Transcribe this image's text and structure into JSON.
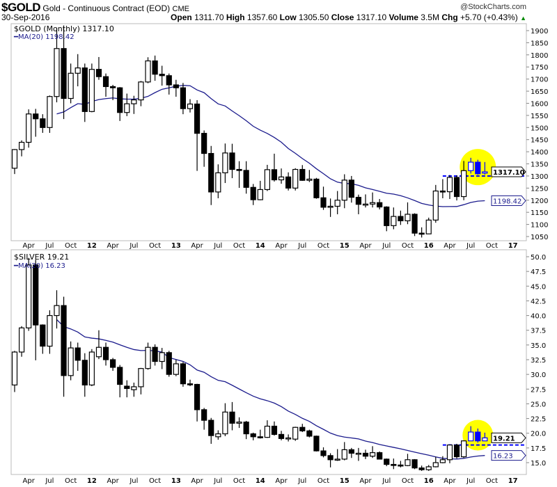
{
  "header": {
    "symbol": "$GOLD",
    "name": "Gold - Continuous Contract (EOD)",
    "exchange": "CME",
    "date": "30-Sep-2016",
    "brand": "@StockCharts.com",
    "open_label": "Open",
    "open": "1311.70",
    "high_label": "High",
    "high": "1357.60",
    "low_label": "Low",
    "low": "1305.50",
    "close_label": "Close",
    "close": "1317.10",
    "volume_label": "Volume",
    "volume": "3.5M",
    "chg_label": "Chg",
    "chg": "+5.70 (+0.43%)",
    "chg_arrow": "▲"
  },
  "colors": {
    "up": "#ffffff",
    "down": "#000000",
    "ma": "#1a1a8c",
    "highlight": "#ffff00",
    "recent": "#0000ff"
  },
  "chart_data": [
    {
      "type": "candlestick",
      "legend": "$GOLD (Monthly) 1317.10",
      "ma_legend": "MA(20) 1198.42",
      "last_tag": "1317.10",
      "ma_tag": "1198.42",
      "ylim": [
        1020,
        1930
      ],
      "yticks": [
        1050,
        1100,
        1150,
        1200,
        1250,
        1300,
        1350,
        1400,
        1450,
        1500,
        1550,
        1600,
        1650,
        1700,
        1750,
        1800,
        1850,
        1900
      ],
      "support_level": 1300,
      "highlight_months": [
        "2016-07",
        "2016-08",
        "2016-09"
      ],
      "start": "2011-02",
      "ohlc": [
        [
          1332,
          1411,
          1308,
          1409
        ],
        [
          1409,
          1447,
          1381,
          1439
        ],
        [
          1439,
          1575,
          1417,
          1556
        ],
        [
          1556,
          1577,
          1462,
          1536
        ],
        [
          1536,
          1555,
          1478,
          1500
        ],
        [
          1500,
          1632,
          1478,
          1628
        ],
        [
          1628,
          1912,
          1604,
          1826
        ],
        [
          1826,
          1921,
          1535,
          1620
        ],
        [
          1620,
          1764,
          1600,
          1724
        ],
        [
          1724,
          1803,
          1670,
          1746
        ],
        [
          1746,
          1764,
          1523,
          1566
        ],
        [
          1566,
          1764,
          1563,
          1740
        ],
        [
          1740,
          1791,
          1697,
          1710
        ],
        [
          1710,
          1723,
          1627,
          1669
        ],
        [
          1669,
          1676,
          1613,
          1664
        ],
        [
          1664,
          1667,
          1527,
          1562
        ],
        [
          1562,
          1640,
          1547,
          1598
        ],
        [
          1598,
          1631,
          1556,
          1614
        ],
        [
          1614,
          1692,
          1588,
          1688
        ],
        [
          1688,
          1790,
          1683,
          1775
        ],
        [
          1775,
          1797,
          1693,
          1720
        ],
        [
          1720,
          1755,
          1673,
          1714
        ],
        [
          1714,
          1723,
          1636,
          1676
        ],
        [
          1676,
          1697,
          1627,
          1664
        ],
        [
          1664,
          1684,
          1555,
          1578
        ],
        [
          1578,
          1617,
          1562,
          1597
        ],
        [
          1597,
          1613,
          1321,
          1476
        ],
        [
          1476,
          1488,
          1338,
          1393
        ],
        [
          1393,
          1424,
          1180,
          1234
        ],
        [
          1234,
          1348,
          1208,
          1313
        ],
        [
          1313,
          1434,
          1271,
          1395
        ],
        [
          1395,
          1433,
          1291,
          1327
        ],
        [
          1327,
          1361,
          1251,
          1323
        ],
        [
          1323,
          1361,
          1227,
          1253
        ],
        [
          1253,
          1267,
          1180,
          1202
        ],
        [
          1202,
          1280,
          1200,
          1244
        ],
        [
          1244,
          1346,
          1238,
          1326
        ],
        [
          1326,
          1392,
          1277,
          1284
        ],
        [
          1284,
          1331,
          1268,
          1296
        ],
        [
          1296,
          1315,
          1240,
          1250
        ],
        [
          1250,
          1332,
          1240,
          1327
        ],
        [
          1327,
          1345,
          1280,
          1282
        ],
        [
          1282,
          1325,
          1275,
          1287
        ],
        [
          1287,
          1292,
          1206,
          1210
        ],
        [
          1210,
          1256,
          1160,
          1171
        ],
        [
          1171,
          1207,
          1131,
          1175
        ],
        [
          1175,
          1238,
          1142,
          1200
        ],
        [
          1200,
          1307,
          1167,
          1283
        ],
        [
          1283,
          1300,
          1190,
          1212
        ],
        [
          1212,
          1223,
          1142,
          1183
        ],
        [
          1183,
          1224,
          1170,
          1184
        ],
        [
          1184,
          1232,
          1170,
          1190
        ],
        [
          1190,
          1205,
          1162,
          1172
        ],
        [
          1172,
          1175,
          1072,
          1095
        ],
        [
          1095,
          1170,
          1080,
          1133
        ],
        [
          1133,
          1157,
          1098,
          1115
        ],
        [
          1115,
          1191,
          1101,
          1142
        ],
        [
          1142,
          1146,
          1052,
          1064
        ],
        [
          1064,
          1088,
          1046,
          1061
        ],
        [
          1061,
          1128,
          1061,
          1118
        ],
        [
          1118,
          1263,
          1107,
          1238
        ],
        [
          1238,
          1287,
          1208,
          1235
        ],
        [
          1235,
          1304,
          1205,
          1294
        ],
        [
          1294,
          1303,
          1199,
          1215
        ],
        [
          1215,
          1362,
          1200,
          1322
        ],
        [
          1322,
          1375,
          1310,
          1357
        ],
        [
          1357,
          1367,
          1305,
          1309
        ],
        [
          1311.7,
          1357.6,
          1305.5,
          1317.1
        ]
      ]
    },
    {
      "type": "candlestick",
      "legend": "$SILVER 19.21",
      "ma_legend": "MA(20) 16.23",
      "last_tag": "19.21",
      "ma_tag": "16.23",
      "ylim": [
        13.2,
        50.5
      ],
      "yticks": [
        "15.0",
        "17.5",
        "20.0",
        "22.5",
        "25.0",
        "27.5",
        "30.0",
        "32.5",
        "35.0",
        "37.5",
        "40.0",
        "42.5",
        "45.0",
        "47.5",
        "50.0"
      ],
      "support_level": 18.0,
      "highlight_months": [
        "2016-07",
        "2016-08",
        "2016-09"
      ],
      "start": "2011-02",
      "ohlc": [
        [
          28.2,
          34.0,
          27.0,
          33.8
        ],
        [
          33.8,
          38.2,
          33.0,
          37.9
        ],
        [
          37.9,
          49.8,
          37.4,
          48.6
        ],
        [
          48.6,
          49.5,
          32.4,
          38.4
        ],
        [
          38.4,
          38.5,
          33.5,
          34.8
        ],
        [
          34.8,
          40.9,
          33.5,
          40.0
        ],
        [
          40.0,
          44.3,
          37.8,
          41.7
        ],
        [
          41.7,
          43.2,
          26.2,
          29.8
        ],
        [
          29.8,
          35.6,
          29.0,
          34.5
        ],
        [
          34.5,
          35.4,
          30.6,
          32.4
        ],
        [
          32.4,
          33.6,
          26.2,
          28.2
        ],
        [
          28.2,
          34.3,
          28.0,
          33.8
        ],
        [
          33.0,
          37.5,
          32.6,
          34.6
        ],
        [
          34.6,
          35.4,
          31.5,
          32.5
        ],
        [
          32.5,
          32.8,
          30.6,
          31.2
        ],
        [
          31.2,
          31.6,
          26.1,
          28.3
        ],
        [
          28.0,
          29.0,
          26.1,
          27.6
        ],
        [
          27.4,
          28.6,
          26.2,
          27.9
        ],
        [
          27.9,
          31.1,
          26.6,
          31.0
        ],
        [
          31.0,
          35.4,
          30.8,
          34.6
        ],
        [
          34.6,
          35.1,
          31.5,
          32.2
        ],
        [
          32.2,
          34.5,
          30.9,
          33.7
        ],
        [
          33.7,
          34.0,
          29.6,
          30.0
        ],
        [
          30.0,
          32.5,
          29.7,
          31.8
        ],
        [
          31.8,
          32.1,
          27.9,
          28.4
        ],
        [
          28.4,
          29.1,
          28.0,
          28.3
        ],
        [
          28.3,
          28.4,
          22.0,
          24.0
        ],
        [
          24.0,
          24.3,
          20.6,
          22.2
        ],
        [
          22.2,
          22.6,
          18.2,
          19.6
        ],
        [
          19.4,
          20.5,
          18.9,
          19.9
        ],
        [
          19.9,
          25.1,
          19.5,
          23.6
        ],
        [
          23.6,
          25.3,
          20.5,
          21.7
        ],
        [
          21.7,
          22.7,
          20.9,
          21.9
        ],
        [
          21.9,
          22.1,
          19.0,
          19.9
        ],
        [
          19.9,
          20.1,
          18.8,
          19.4
        ],
        [
          19.4,
          20.6,
          19.1,
          19.3
        ],
        [
          19.3,
          22.2,
          19.2,
          21.2
        ],
        [
          21.2,
          22.0,
          19.6,
          19.8
        ],
        [
          19.8,
          20.4,
          18.8,
          19.1
        ],
        [
          19.1,
          19.8,
          18.6,
          19.2
        ],
        [
          19.0,
          21.1,
          18.7,
          21.0
        ],
        [
          21.0,
          21.6,
          20.2,
          20.4
        ],
        [
          20.4,
          20.6,
          19.3,
          19.5
        ],
        [
          19.5,
          19.6,
          16.9,
          17.0
        ],
        [
          17.0,
          17.6,
          15.9,
          16.2
        ],
        [
          16.2,
          16.6,
          14.2,
          15.5
        ],
        [
          15.5,
          17.3,
          15.3,
          15.6
        ],
        [
          15.6,
          18.5,
          15.4,
          17.2
        ],
        [
          17.2,
          17.5,
          15.8,
          16.6
        ],
        [
          16.6,
          17.5,
          15.3,
          16.6
        ],
        [
          16.6,
          17.2,
          15.6,
          16.1
        ],
        [
          16.1,
          17.8,
          15.8,
          16.7
        ],
        [
          16.7,
          16.9,
          15.6,
          15.6
        ],
        [
          15.6,
          15.7,
          14.4,
          14.7
        ],
        [
          14.7,
          15.7,
          13.9,
          14.6
        ],
        [
          14.6,
          15.3,
          14.2,
          14.5
        ],
        [
          14.5,
          16.5,
          14.4,
          15.5
        ],
        [
          15.5,
          15.6,
          13.9,
          14.1
        ],
        [
          14.1,
          14.5,
          13.6,
          13.8
        ],
        [
          13.8,
          14.6,
          13.6,
          14.3
        ],
        [
          14.3,
          16.0,
          14.2,
          15.0
        ],
        [
          15.0,
          16.1,
          14.9,
          15.5
        ],
        [
          15.5,
          18.1,
          14.9,
          18.0
        ],
        [
          18.0,
          18.2,
          15.7,
          16.0
        ],
        [
          16.0,
          18.8,
          15.8,
          18.7
        ],
        [
          18.7,
          21.2,
          18.7,
          20.2
        ],
        [
          20.2,
          20.8,
          18.4,
          18.7
        ],
        [
          18.7,
          20.1,
          18.8,
          19.21
        ]
      ]
    }
  ],
  "x_labels": [
    "Apr",
    "Jul",
    "Oct",
    "12",
    "Apr",
    "Jul",
    "Oct",
    "13",
    "Apr",
    "Jul",
    "Oct",
    "14",
    "Apr",
    "Jul",
    "Oct",
    "15",
    "Apr",
    "Jul",
    "Oct",
    "16",
    "Apr",
    "Jul",
    "Oct",
    "17"
  ]
}
